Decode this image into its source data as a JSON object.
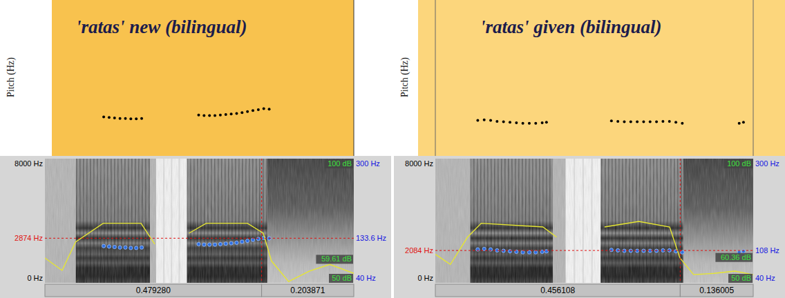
{
  "chart_data": [
    {
      "type": "line",
      "title": "'ratas' new (bilingual)",
      "y_label": "Pitch (Hz)",
      "xlim": [
        0,
        0.683151
      ],
      "ylim": [
        0,
        8000
      ],
      "yticks": [
        {
          "value": 0,
          "label": "0 Hz"
        },
        {
          "value": 8000,
          "label": "8000 Hz"
        }
      ],
      "y2lim": [
        40,
        300
      ],
      "y2ticks": [
        {
          "value": 40,
          "label": "40 Hz"
        },
        {
          "value": 300,
          "label": "300 Hz"
        }
      ],
      "intensity_lim": [
        50,
        100
      ],
      "intensity_ticks": [
        {
          "value": 50,
          "label": "50 dB"
        },
        {
          "value": 100,
          "label": "100 dB"
        }
      ],
      "intervals": [
        {
          "value": 0.47928,
          "label": "0.479280"
        },
        {
          "value": 0.203871,
          "label": "0.203871"
        }
      ],
      "cursor": {
        "frequency": {
          "value": 2874,
          "label": "2874 Hz"
        },
        "pitch": {
          "value": 133.6,
          "label": "133.6 Hz"
        },
        "intensity": {
          "value": 59.61,
          "label": "59.61 dB"
        }
      },
      "series": [
        {
          "type": "scatter",
          "color": "#2f6fe0",
          "marker": "dot",
          "axis": "y2",
          "x": [
            0.13,
            0.142,
            0.154,
            0.166,
            0.178,
            0.19,
            0.202,
            0.214,
            0.34,
            0.352,
            0.364,
            0.376,
            0.388,
            0.4,
            0.412,
            0.424,
            0.436,
            0.448,
            0.46,
            0.472,
            0.484,
            0.496
          ],
          "values": [
            117,
            116,
            115,
            114,
            114,
            113,
            113,
            114,
            121,
            120,
            120,
            120,
            121,
            122,
            123,
            124,
            126,
            128,
            130,
            132,
            134,
            133
          ]
        },
        {
          "type": "line",
          "color": "#e6e632",
          "axis": "intensity",
          "x": [
            0,
            0.038,
            0.068,
            0.129,
            0.2125,
            0.2429,
            0.27,
            0.3188,
            0.3568,
            0.4478,
            0.4828,
            0.501,
            0.5389,
            0.5845,
            0.63,
            0.683151
          ],
          "values": [
            60,
            55,
            66.5,
            74,
            74,
            65.6,
            null,
            70,
            74,
            74,
            70,
            58.8,
            50.5,
            54.7,
            57.4,
            53.8
          ]
        }
      ]
    },
    {
      "type": "line",
      "title": "'ratas' given (bilingual)",
      "y_label": "Pitch (Hz)",
      "xlim": [
        0,
        0.592113
      ],
      "ylim": [
        0,
        8000
      ],
      "yticks": [
        {
          "value": 0,
          "label": "0 Hz"
        },
        {
          "value": 8000,
          "label": "8000 Hz"
        }
      ],
      "y2lim": [
        40,
        300
      ],
      "y2ticks": [
        {
          "value": 40,
          "label": "40 Hz"
        },
        {
          "value": 300,
          "label": "300 Hz"
        }
      ],
      "intensity_lim": [
        50,
        100
      ],
      "intensity_ticks": [
        {
          "value": 50,
          "label": "50 dB"
        },
        {
          "value": 100,
          "label": "100 dB"
        }
      ],
      "intervals": [
        {
          "value": 0.456108,
          "label": "0.456108"
        },
        {
          "value": 0.136005,
          "label": "0.136005"
        }
      ],
      "cursor": {
        "frequency": {
          "value": 2084,
          "label": "2084 Hz"
        },
        "pitch": {
          "value": 108,
          "label": "108 Hz"
        },
        "intensity": {
          "value": 60.36,
          "label": "60.36 dB"
        }
      },
      "series": [
        {
          "type": "scatter",
          "color": "#2f6fe0",
          "marker": "dot",
          "axis": "y2",
          "x": [
            0.079,
            0.091,
            0.103,
            0.115,
            0.127,
            0.139,
            0.151,
            0.163,
            0.175,
            0.187,
            0.199,
            0.207,
            0.328,
            0.34,
            0.352,
            0.364,
            0.376,
            0.388,
            0.4,
            0.412,
            0.424,
            0.436,
            0.448,
            0.46,
            0.566,
            0.574
          ],
          "values": [
            110,
            111,
            110,
            108,
            107,
            106,
            105,
            104,
            104,
            104,
            105,
            106,
            109,
            108,
            107,
            107,
            107,
            107,
            107,
            107,
            108,
            108,
            106,
            104,
            104,
            106
          ]
        },
        {
          "type": "line",
          "color": "#e6e632",
          "axis": "intensity",
          "x": [
            0,
            0.028,
            0.06,
            0.0855,
            0.2003,
            0.2259,
            0.26,
            0.3152,
            0.379,
            0.4364,
            0.4556,
            0.4811,
            0.5194,
            0.5577,
            0.592113
          ],
          "values": [
            61.5,
            57.4,
            68.4,
            74,
            72.5,
            68.4,
            null,
            72.5,
            74.7,
            72.5,
            60,
            53.3,
            53.8,
            54.7,
            53.3
          ]
        }
      ]
    }
  ]
}
